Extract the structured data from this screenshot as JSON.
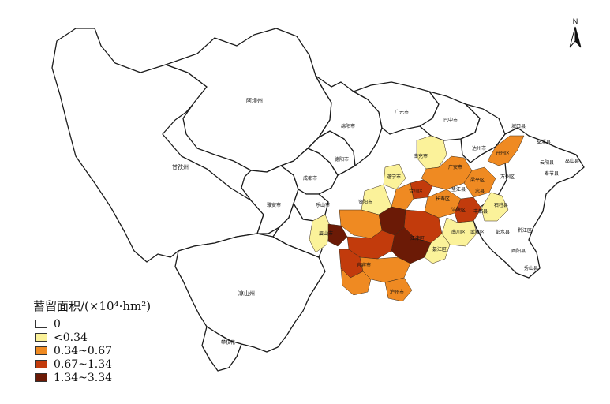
{
  "legend": {
    "title": "蓄留面积/(×10⁴·hm²)",
    "items": [
      {
        "label": "0",
        "color": "#ffffff"
      },
      {
        "label": "<0.34",
        "color": "#fbf29a"
      },
      {
        "label": "0.34~0.67",
        "color": "#ef8a22"
      },
      {
        "label": "0.67~1.34",
        "color": "#c23b0c"
      },
      {
        "label": "1.34~3.34",
        "color": "#6b1a06"
      }
    ]
  },
  "north_arrow": {
    "label": "N"
  },
  "regions": {
    "aba": "阿坝州",
    "ganzi": "甘孜州",
    "liangshan": "凉山州",
    "panzhihua": "攀枝花",
    "yaan": "雅安市",
    "chengdu": "成都市",
    "deyang": "德阳市",
    "mianyang": "绵阳市",
    "guangyuan": "广元市",
    "bazhong": "巴中市",
    "dazhou": "达州市",
    "meishan": "眉山市",
    "leshan": "乐山市",
    "yibin": "宜宾市",
    "luzhou": "泸州市",
    "chengkou": "城口县",
    "wuxi": "巫溪县",
    "fengjie": "奉节县",
    "wushan": "巫山县",
    "yunyang": "云阳县",
    "wanzhou": "万州区",
    "kaizhou": "开州区",
    "liangping": "梁平区",
    "zhongxian": "忠县",
    "shizhu": "石柱县",
    "fengdu": "丰都县",
    "wulong": "武隆区",
    "pengshui": "彭水县",
    "qianjiang": "黔江区",
    "youyang": "酉阳县",
    "xiushan": "秀山县",
    "fuling": "涪陵区",
    "changshou": "长寿区",
    "hechuan": "合川区",
    "jiangjin": "江津区",
    "qijiang": "綦江区",
    "nanchuan": "南川区",
    "suining": "遂宁市",
    "nanchong": "南充市",
    "guangan": "广安市",
    "dianjiang": "垫江县",
    "ziyang": "资阳市"
  }
}
